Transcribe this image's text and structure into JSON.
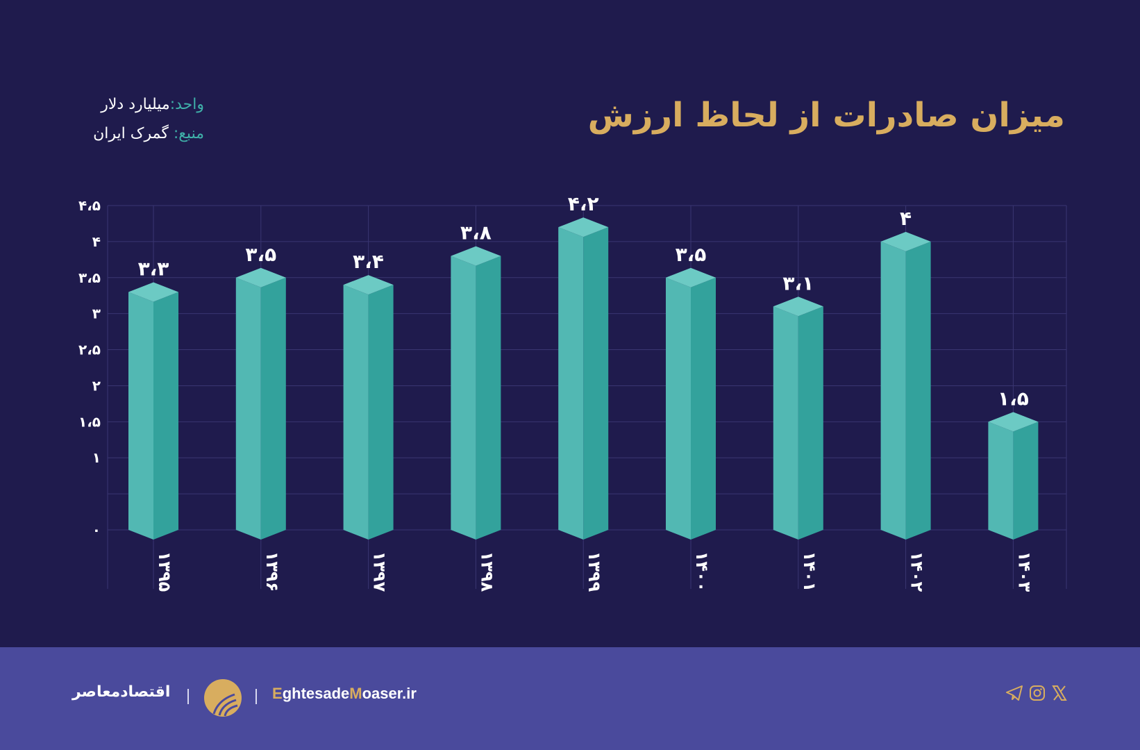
{
  "title": "میزان صادرات از لحاظ ارزش",
  "meta": {
    "unit_label": "واحد:",
    "unit_value": "میلیارد دلار",
    "source_label": "منبع:",
    "source_value": "گمرک ایران"
  },
  "chart_data": {
    "type": "bar",
    "title": "میزان صادرات از لحاظ ارزش",
    "categories": [
      "۱۳۹۵",
      "۱۳۹۶",
      "۱۳۹۷",
      "۱۳۹۸",
      "۱۳۹۹",
      "۱۴۰۰",
      "۱۴۰۱",
      "۱۴۰۲",
      "۱۴۰۳"
    ],
    "values": [
      3.3,
      3.5,
      3.4,
      3.8,
      4.2,
      3.5,
      3.1,
      4,
      1.5
    ],
    "value_labels": [
      "۳،۳",
      "۳،۵",
      "۳،۴",
      "۳،۸",
      "۴،۲",
      "۳،۵",
      "۳،۱",
      "۴",
      "۱،۵"
    ],
    "ylim": [
      0,
      4.5
    ],
    "yticks": [
      0,
      0.5,
      1,
      1.5,
      2,
      2.5,
      3,
      3.5,
      4,
      4.5
    ],
    "ytick_labels": [
      "۰",
      "",
      "۱",
      "۱،۵",
      "۲",
      "۲،۵",
      "۳",
      "۳،۵",
      "۴",
      "۴،۵"
    ],
    "grid": true,
    "bar_style": "3d-prism",
    "colors": {
      "front_left": "#52b8b3",
      "front_right": "#33a29c",
      "top": "#6ccac4"
    }
  },
  "footer": {
    "brand_fa": "اقتصادمعاصر",
    "site_prefix1": "E",
    "site_part1": "ghtesade",
    "site_prefix2": "M",
    "site_part2": "oaser.ir",
    "social_icons": [
      "telegram-icon",
      "instagram-icon",
      "x-icon"
    ]
  },
  "colors": {
    "background": "#1f1b4d",
    "footer": "#4a4a9c",
    "accent": "#d8ad5f",
    "teal": "#3fb0a9"
  }
}
